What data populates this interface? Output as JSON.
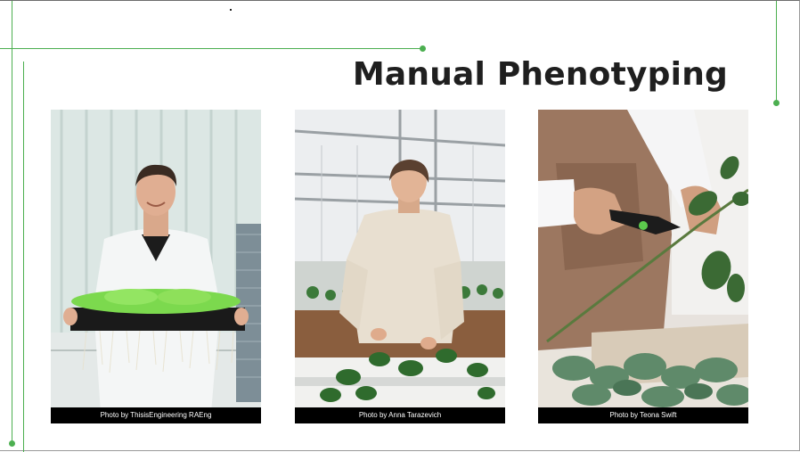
{
  "slide": {
    "title": "Manual Phenotyping",
    "accent_color": "#4caf50"
  },
  "photos": [
    {
      "subject": "man-holding-seedling-tray",
      "credit": "Photo by ThisisEngineering RAEng"
    },
    {
      "subject": "woman-pruning-plants",
      "credit": "Photo by Anna Tarazevich"
    },
    {
      "subject": "hands-pruning-with-shears",
      "credit": "Photo by Teona Swift"
    }
  ]
}
